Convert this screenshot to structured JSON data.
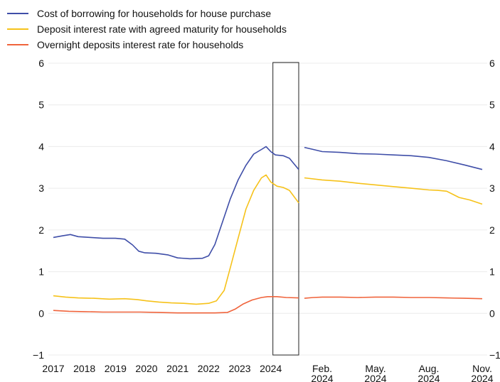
{
  "chart_data": {
    "type": "line",
    "legend_placement": "top-left",
    "grid": true,
    "ylim": [
      -1,
      6
    ],
    "yticks": [
      -1,
      0,
      1,
      2,
      3,
      4,
      5,
      6
    ],
    "series": [
      {
        "name": "Cost of borrowing for households for house purchase",
        "color": "#3f4ea8"
      },
      {
        "name": "Deposit interest rate with agreed maturity for households",
        "color": "#f6c21a"
      },
      {
        "name": "Overnight deposits interest rate for households",
        "color": "#f0643c"
      }
    ],
    "panels": [
      {
        "id": "long-run",
        "xlim": [
          2017.0,
          2024.9
        ],
        "xticks": [
          {
            "value": 2017.0,
            "label": "2017"
          },
          {
            "value": 2018.0,
            "label": "2018"
          },
          {
            "value": 2019.0,
            "label": "2019"
          },
          {
            "value": 2020.0,
            "label": "2020"
          },
          {
            "value": 2021.0,
            "label": "2021"
          },
          {
            "value": 2022.0,
            "label": "2022"
          },
          {
            "value": 2023.0,
            "label": "2023"
          },
          {
            "value": 2024.0,
            "label": "2024"
          }
        ],
        "highlight_range": [
          2024.0,
          2024.9
        ],
        "lines": [
          [
            [
              2017.0,
              1.82
            ],
            [
              2017.3,
              1.86
            ],
            [
              2017.55,
              1.89
            ],
            [
              2017.8,
              1.84
            ],
            [
              2018.2,
              1.82
            ],
            [
              2018.6,
              1.8
            ],
            [
              2019.0,
              1.8
            ],
            [
              2019.3,
              1.78
            ],
            [
              2019.55,
              1.64
            ],
            [
              2019.75,
              1.49
            ],
            [
              2019.95,
              1.45
            ],
            [
              2020.3,
              1.44
            ],
            [
              2020.7,
              1.4
            ],
            [
              2021.0,
              1.33
            ],
            [
              2021.4,
              1.31
            ],
            [
              2021.8,
              1.32
            ],
            [
              2022.0,
              1.38
            ],
            [
              2022.2,
              1.65
            ],
            [
              2022.45,
              2.2
            ],
            [
              2022.7,
              2.75
            ],
            [
              2022.95,
              3.2
            ],
            [
              2023.2,
              3.55
            ],
            [
              2023.45,
              3.82
            ],
            [
              2023.7,
              3.93
            ],
            [
              2023.85,
              4.0
            ],
            [
              2024.0,
              3.88
            ],
            [
              2024.15,
              3.8
            ],
            [
              2024.4,
              3.78
            ],
            [
              2024.6,
              3.72
            ],
            [
              2024.9,
              3.45
            ]
          ],
          [
            [
              2017.0,
              0.42
            ],
            [
              2017.4,
              0.39
            ],
            [
              2017.8,
              0.37
            ],
            [
              2018.3,
              0.36
            ],
            [
              2018.8,
              0.34
            ],
            [
              2019.3,
              0.35
            ],
            [
              2019.7,
              0.33
            ],
            [
              2020.0,
              0.3
            ],
            [
              2020.4,
              0.27
            ],
            [
              2020.8,
              0.25
            ],
            [
              2021.2,
              0.24
            ],
            [
              2021.6,
              0.22
            ],
            [
              2022.0,
              0.24
            ],
            [
              2022.25,
              0.3
            ],
            [
              2022.5,
              0.55
            ],
            [
              2022.7,
              1.1
            ],
            [
              2022.95,
              1.8
            ],
            [
              2023.2,
              2.5
            ],
            [
              2023.45,
              2.95
            ],
            [
              2023.7,
              3.25
            ],
            [
              2023.85,
              3.32
            ],
            [
              2024.0,
              3.15
            ],
            [
              2024.2,
              3.05
            ],
            [
              2024.4,
              3.02
            ],
            [
              2024.6,
              2.95
            ],
            [
              2024.75,
              2.8
            ],
            [
              2024.9,
              2.65
            ]
          ],
          [
            [
              2017.0,
              0.07
            ],
            [
              2017.5,
              0.05
            ],
            [
              2018.0,
              0.04
            ],
            [
              2018.6,
              0.03
            ],
            [
              2019.2,
              0.03
            ],
            [
              2019.8,
              0.03
            ],
            [
              2020.4,
              0.02
            ],
            [
              2021.0,
              0.01
            ],
            [
              2021.6,
              0.01
            ],
            [
              2022.2,
              0.01
            ],
            [
              2022.6,
              0.02
            ],
            [
              2022.85,
              0.1
            ],
            [
              2023.1,
              0.22
            ],
            [
              2023.4,
              0.32
            ],
            [
              2023.7,
              0.38
            ],
            [
              2023.9,
              0.4
            ],
            [
              2024.2,
              0.4
            ],
            [
              2024.5,
              0.38
            ],
            [
              2024.9,
              0.37
            ]
          ]
        ]
      },
      {
        "id": "2024-detail",
        "xlim": [
          0,
          10
        ],
        "xticks": [
          {
            "value": 1,
            "label": "Feb.",
            "label2": "2024"
          },
          {
            "value": 4,
            "label": "May.",
            "label2": "2024"
          },
          {
            "value": 7,
            "label": "Aug.",
            "label2": "2024"
          },
          {
            "value": 10,
            "label": "Nov.",
            "label2": "2024"
          }
        ],
        "lines": [
          [
            [
              0,
              3.98
            ],
            [
              0.5,
              3.93
            ],
            [
              1,
              3.88
            ],
            [
              2,
              3.86
            ],
            [
              3,
              3.83
            ],
            [
              4,
              3.82
            ],
            [
              5,
              3.8
            ],
            [
              6,
              3.78
            ],
            [
              7,
              3.74
            ],
            [
              8,
              3.66
            ],
            [
              9,
              3.56
            ],
            [
              10,
              3.45
            ]
          ],
          [
            [
              0,
              3.25
            ],
            [
              1,
              3.2
            ],
            [
              2,
              3.17
            ],
            [
              3,
              3.12
            ],
            [
              4,
              3.08
            ],
            [
              5,
              3.04
            ],
            [
              6,
              3.0
            ],
            [
              7,
              2.96
            ],
            [
              7.5,
              2.95
            ],
            [
              8,
              2.93
            ],
            [
              8.7,
              2.78
            ],
            [
              9.3,
              2.72
            ],
            [
              10,
              2.62
            ]
          ],
          [
            [
              0,
              0.36
            ],
            [
              0.5,
              0.38
            ],
            [
              1,
              0.39
            ],
            [
              2,
              0.39
            ],
            [
              3,
              0.38
            ],
            [
              4,
              0.39
            ],
            [
              5,
              0.39
            ],
            [
              6,
              0.38
            ],
            [
              7,
              0.38
            ],
            [
              8,
              0.37
            ],
            [
              9,
              0.36
            ],
            [
              10,
              0.35
            ]
          ]
        ]
      }
    ]
  }
}
